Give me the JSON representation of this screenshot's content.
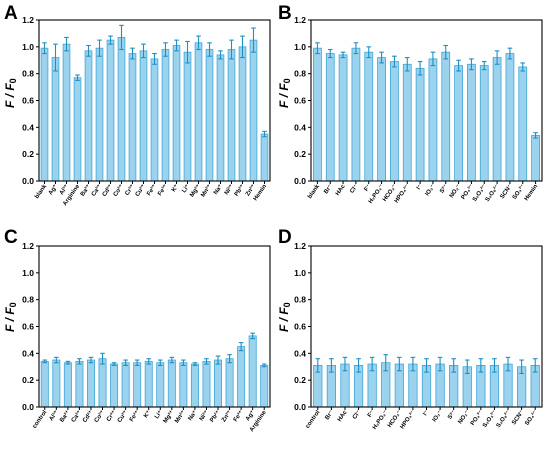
{
  "chart_data": [
    {
      "panel": "A",
      "type": "bar",
      "ylabel": "F / F0",
      "ylim": [
        0,
        1.2
      ],
      "yticks": [
        "0.0",
        "0.2",
        "0.4",
        "0.6",
        "0.8",
        "1.0",
        "1.2"
      ],
      "categories": [
        "blank",
        "Ag⁺",
        "Al³⁺",
        "Arginine",
        "Ba²⁺",
        "Ca²⁺",
        "Cd²⁺",
        "Co²⁺",
        "Cr³⁺",
        "Cu²⁺",
        "Fe²⁺",
        "Fe³⁺",
        "K⁺",
        "Li⁺",
        "Mg²⁺",
        "Mn²⁺",
        "Na⁺",
        "Ni²⁺",
        "Pb²⁺",
        "Zn²⁺",
        "Hemin"
      ],
      "values": [
        0.99,
        0.92,
        1.02,
        0.77,
        0.97,
        0.99,
        1.05,
        1.07,
        0.95,
        0.97,
        0.91,
        0.98,
        1.01,
        0.96,
        1.03,
        0.98,
        0.94,
        0.98,
        1.0,
        1.05,
        0.35
      ],
      "errors": [
        0.04,
        0.1,
        0.05,
        0.02,
        0.04,
        0.06,
        0.03,
        0.09,
        0.04,
        0.05,
        0.04,
        0.05,
        0.04,
        0.08,
        0.05,
        0.05,
        0.03,
        0.07,
        0.08,
        0.09,
        0.02
      ]
    },
    {
      "panel": "B",
      "type": "bar",
      "ylabel": "F / F0",
      "ylim": [
        0,
        1.2
      ],
      "yticks": [
        "0.0",
        "0.2",
        "0.4",
        "0.6",
        "0.8",
        "1.0",
        "1.2"
      ],
      "categories": [
        "blank",
        "Br⁻",
        "HAc",
        "Cl⁻",
        "F⁻",
        "H₂PO₄⁻",
        "HCO₃⁻",
        "HPO₄²⁻",
        "I⁻",
        "IO₃⁻",
        "S²⁻",
        "NO₂⁻",
        "PO₄³⁻",
        "S₂O₃²⁻",
        "S₂O₈²⁻",
        "SCN⁻",
        "SO₄²⁻",
        "Hemin"
      ],
      "values": [
        0.99,
        0.95,
        0.94,
        0.99,
        0.96,
        0.92,
        0.89,
        0.87,
        0.84,
        0.91,
        0.96,
        0.86,
        0.87,
        0.86,
        0.92,
        0.95,
        0.85,
        0.34
      ],
      "errors": [
        0.04,
        0.03,
        0.02,
        0.04,
        0.04,
        0.04,
        0.04,
        0.05,
        0.05,
        0.05,
        0.05,
        0.04,
        0.04,
        0.03,
        0.05,
        0.04,
        0.03,
        0.02
      ]
    },
    {
      "panel": "C",
      "type": "bar",
      "ylabel": "F / F0",
      "ylim": [
        0,
        1.2
      ],
      "yticks": [
        "0.0",
        "0.2",
        "0.4",
        "0.6",
        "0.8",
        "1.0",
        "1.2"
      ],
      "categories": [
        "control",
        "Al³⁺",
        "Ba²⁺",
        "Ca²⁺",
        "Cd²⁺",
        "Co²⁺",
        "Cr³⁺",
        "Cu²⁺",
        "Fe²⁺",
        "K⁺",
        "Li⁺",
        "Mg²⁺",
        "Mn²⁺",
        "Na⁺",
        "Ni²⁺",
        "Pb²⁺",
        "Zn²⁺",
        "Fe³⁺",
        "Ag⁺",
        "Arginine"
      ],
      "values": [
        0.34,
        0.35,
        0.33,
        0.34,
        0.35,
        0.36,
        0.32,
        0.33,
        0.33,
        0.34,
        0.33,
        0.35,
        0.33,
        0.32,
        0.34,
        0.35,
        0.36,
        0.45,
        0.53,
        0.31
      ],
      "errors": [
        0.01,
        0.02,
        0.01,
        0.02,
        0.02,
        0.04,
        0.01,
        0.02,
        0.02,
        0.02,
        0.02,
        0.02,
        0.02,
        0.01,
        0.02,
        0.03,
        0.03,
        0.03,
        0.02,
        0.01
      ]
    },
    {
      "panel": "D",
      "type": "bar",
      "ylabel": "F / F0",
      "ylim": [
        0,
        1.2
      ],
      "yticks": [
        "0.0",
        "0.2",
        "0.4",
        "0.6",
        "0.8",
        "1.0",
        "1.2"
      ],
      "categories": [
        "control",
        "Br⁻",
        "HAc",
        "Cl⁻",
        "F⁻",
        "H₂PO₄⁻",
        "HCO₃⁻",
        "HPO₄²⁻",
        "I⁻",
        "IO₃⁻",
        "S²⁻",
        "NO₂⁻",
        "PO₄³⁻",
        "S₂O₃²⁻",
        "S₂O₈²⁻",
        "SCN⁻",
        "SO₄²⁻"
      ],
      "values": [
        0.31,
        0.31,
        0.32,
        0.31,
        0.32,
        0.33,
        0.32,
        0.32,
        0.31,
        0.32,
        0.31,
        0.3,
        0.31,
        0.31,
        0.32,
        0.3,
        0.31
      ],
      "errors": [
        0.05,
        0.05,
        0.05,
        0.05,
        0.05,
        0.06,
        0.05,
        0.05,
        0.05,
        0.05,
        0.05,
        0.05,
        0.05,
        0.05,
        0.05,
        0.05,
        0.05
      ]
    }
  ],
  "style": {
    "bar_color": "#9bd3ef",
    "bar_edge_color": "#3fa6d6",
    "error_color": "#1f8fc4"
  }
}
